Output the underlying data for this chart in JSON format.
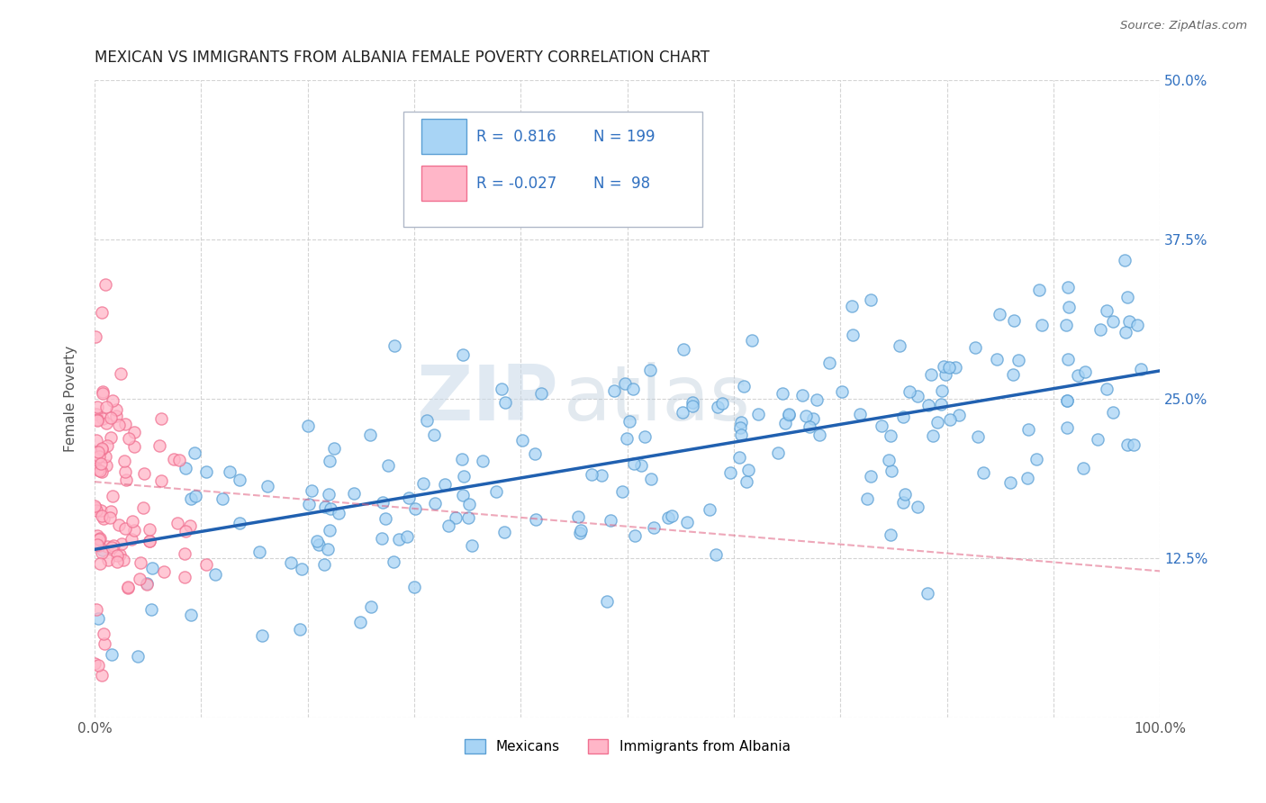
{
  "title": "MEXICAN VS IMMIGRANTS FROM ALBANIA FEMALE POVERTY CORRELATION CHART",
  "source": "Source: ZipAtlas.com",
  "ylabel": "Female Poverty",
  "xlim": [
    0,
    1.0
  ],
  "ylim": [
    0,
    0.5
  ],
  "xticks": [
    0.0,
    0.1,
    0.2,
    0.3,
    0.4,
    0.5,
    0.6,
    0.7,
    0.8,
    0.9,
    1.0
  ],
  "yticks": [
    0.0,
    0.125,
    0.25,
    0.375,
    0.5
  ],
  "ytick_labels": [
    "",
    "12.5%",
    "25.0%",
    "37.5%",
    "50.0%"
  ],
  "xtick_labels": [
    "0.0%",
    "",
    "",
    "",
    "",
    "",
    "",
    "",
    "",
    "",
    "100.0%"
  ],
  "r_mexican": 0.816,
  "n_mexican": 199,
  "r_albania": -0.027,
  "n_albania": 98,
  "color_mexican_face": "#a8d4f5",
  "color_mexican_edge": "#5b9fd4",
  "color_albania_face": "#ffb6c8",
  "color_albania_edge": "#f07090",
  "color_mexican_line": "#2060b0",
  "color_albania_line": "#e06080",
  "watermark_zip": "ZIP",
  "watermark_atlas": "atlas",
  "background_color": "#ffffff",
  "grid_color": "#d0d0d0",
  "mexican_line_start_y": 0.132,
  "mexican_line_end_y": 0.272,
  "albania_line_start_y": 0.185,
  "albania_line_end_y": 0.115,
  "legend_r1": "R =  0.816",
  "legend_n1": "N = 199",
  "legend_r2": "R = -0.027",
  "legend_n2": "N =  98",
  "legend_color": "#3070c0",
  "title_color": "#222222",
  "source_color": "#666666",
  "ylabel_color": "#555555"
}
